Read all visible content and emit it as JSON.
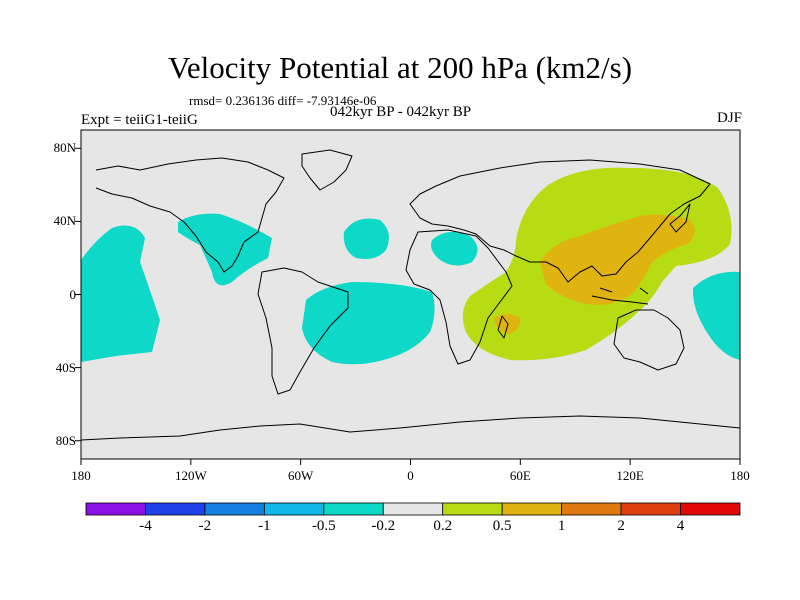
{
  "title": "Velocity Potential at 200 hPa (km2/s)",
  "stats": "rmsd= 0.236136 diff= -7.93146e-06",
  "experiment": "Expt = teiiG1-teiiG",
  "period": "042kyr BP - 042kyr BP",
  "season": "DJF",
  "map": {
    "projection": "cylindrical equidistant",
    "lon_range": [
      -180,
      180
    ],
    "lat_range": [
      -90,
      90
    ],
    "y_ticks": [
      {
        "label": "80N",
        "lat": 80
      },
      {
        "label": "40N",
        "lat": 40
      },
      {
        "label": "0",
        "lat": 0
      },
      {
        "label": "40S",
        "lat": -40
      },
      {
        "label": "80S",
        "lat": -80
      }
    ],
    "x_ticks": [
      {
        "label": "180",
        "lon": -180
      },
      {
        "label": "120W",
        "lon": -120
      },
      {
        "label": "60W",
        "lon": -60
      },
      {
        "label": "0",
        "lon": 0
      },
      {
        "label": "60E",
        "lon": 60
      },
      {
        "label": "120E",
        "lon": 120
      },
      {
        "label": "180",
        "lon": 180
      }
    ],
    "background_color": "#e6e6e6"
  },
  "colorbar": {
    "colors": [
      "#8a10e6",
      "#2040e8",
      "#1480e0",
      "#10b8e8",
      "#0ed8c8",
      "#e6e6e6",
      "#b8dc14",
      "#e0b410",
      "#e07a10",
      "#e04010",
      "#e00808"
    ],
    "labels": [
      "-4",
      "-2",
      "-1",
      "-0.5",
      "-0.2",
      "0.2",
      "0.5",
      "1",
      "2",
      "4"
    ]
  },
  "chart_data": {
    "type": "heatmap",
    "variable": "Velocity Potential at 200 hPa (km2/s)",
    "levels": [
      -4,
      -2,
      -1,
      -0.5,
      -0.2,
      0.2,
      0.5,
      1,
      2,
      4
    ],
    "regions": [
      {
        "area": "central-north Pacific",
        "level_band": "-0.5 to -0.2",
        "lon": [
          -180,
          -140
        ],
        "lat": [
          -35,
          35
        ]
      },
      {
        "area": "Mexico / Caribbean",
        "level_band": "-0.5 to -0.2",
        "lon": [
          -140,
          -80
        ],
        "lat": [
          5,
          42
        ]
      },
      {
        "area": "north Atlantic",
        "level_band": "-0.5 to -0.2",
        "lon": [
          -45,
          -18
        ],
        "lat": [
          20,
          40
        ]
      },
      {
        "area": "North Africa / Mediterranean",
        "level_band": "-0.5 to -0.2",
        "lon": [
          15,
          45
        ],
        "lat": [
          15,
          30
        ]
      },
      {
        "area": "tropical South America / south Atlantic",
        "level_band": "-0.5 to -0.2",
        "lon": [
          -75,
          20
        ],
        "lat": [
          -33,
          5
        ]
      },
      {
        "area": "western Pacific dateline",
        "level_band": "-0.5 to -0.2",
        "lon": [
          155,
          180
        ],
        "lat": [
          -25,
          10
        ]
      },
      {
        "area": "Asia / Indian Ocean",
        "level_band": "0.2 to 0.5",
        "lon": [
          35,
          170
        ],
        "lat": [
          -35,
          65
        ]
      },
      {
        "area": "south China / Indochina",
        "level_band": "0.5 to 1",
        "lon": [
          70,
          150
        ],
        "lat": [
          0,
          38
        ]
      },
      {
        "area": "Madagascar",
        "level_band": "0.5 to 1",
        "lon": [
          45,
          60
        ],
        "lat": [
          -15,
          -8
        ]
      }
    ]
  }
}
